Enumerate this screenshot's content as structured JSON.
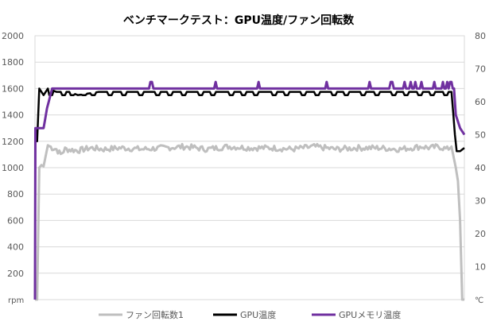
{
  "chart_data": {
    "type": "line",
    "title": "ベンチマークテスト：GPU温度/ファン回転数",
    "x_range": [
      0,
      100
    ],
    "left_axis": {
      "unit_label": "rpm",
      "ylim": [
        0,
        2000
      ],
      "ticks": [
        "200",
        "400",
        "600",
        "800",
        "1000",
        "1200",
        "1400",
        "1600",
        "1800",
        "2000"
      ]
    },
    "right_axis": {
      "unit_label": "℃",
      "ylim": [
        0,
        80
      ],
      "ticks": [
        "10",
        "20",
        "30",
        "40",
        "50",
        "60",
        "70",
        "80"
      ]
    },
    "grid": true,
    "legend_position": "bottom",
    "series": [
      {
        "name": "ファン回転数1",
        "axis": "left",
        "color": "#bfbfbf",
        "x": [
          0,
          0.1,
          0.5,
          1,
          1.5,
          2,
          3,
          4,
          5,
          6,
          7,
          10,
          13,
          16,
          20,
          25,
          30,
          35,
          40,
          45,
          50,
          55,
          60,
          65,
          70,
          75,
          80,
          85,
          90,
          92,
          94,
          96,
          97,
          98,
          98.5,
          99,
          99.5,
          100
        ],
        "values": [
          0,
          0,
          0,
          1000,
          1020,
          1010,
          1170,
          1150,
          1140,
          1100,
          1140,
          1130,
          1150,
          1140,
          1150,
          1140,
          1150,
          1160,
          1140,
          1160,
          1150,
          1150,
          1140,
          1160,
          1140,
          1150,
          1150,
          1140,
          1160,
          1150,
          1160,
          1140,
          1160,
          1000,
          900,
          600,
          0,
          0
        ]
      },
      {
        "name": "GPU温度",
        "axis": "right",
        "color": "#000000",
        "x": [
          0,
          0.5,
          1,
          2,
          3,
          5,
          8,
          10,
          15,
          20,
          25,
          30,
          35,
          40,
          45,
          50,
          55,
          60,
          65,
          70,
          75,
          80,
          85,
          90,
          95,
          97,
          97.8,
          98.2,
          99,
          100
        ],
        "values": [
          48,
          48,
          64,
          62,
          64,
          63,
          63,
          62,
          63,
          63,
          63,
          63,
          63,
          63,
          63,
          63,
          63,
          63,
          63,
          63,
          63,
          63,
          63,
          63,
          63,
          63,
          50,
          45,
          45,
          46
        ]
      },
      {
        "name": "GPUメモリ温度",
        "axis": "right",
        "color": "#7030a0",
        "x": [
          0,
          0.1,
          2,
          2.8,
          4,
          10,
          20,
          30,
          40,
          50,
          60,
          70,
          80,
          85,
          90,
          92,
          94,
          96,
          97,
          97.6,
          98,
          99,
          100
        ],
        "values": [
          0,
          52,
          52,
          58,
          64,
          64,
          64,
          64,
          64,
          64,
          64,
          64,
          64,
          64,
          64,
          64,
          64,
          64,
          64,
          64,
          56,
          52,
          50
        ]
      }
    ],
    "annotations": {
      "purple_spikes_x": [
        27,
        42,
        52,
        68,
        78,
        83,
        86,
        87.5,
        88.5,
        90,
        93,
        95,
        96,
        96.8
      ],
      "black_dips_x": [
        3,
        6,
        8,
        11,
        13,
        17,
        20,
        24,
        28,
        31,
        34,
        38,
        41,
        45,
        48,
        51,
        55,
        58,
        62,
        65,
        69,
        72,
        76,
        79,
        83,
        86,
        89,
        92,
        95
      ]
    }
  }
}
